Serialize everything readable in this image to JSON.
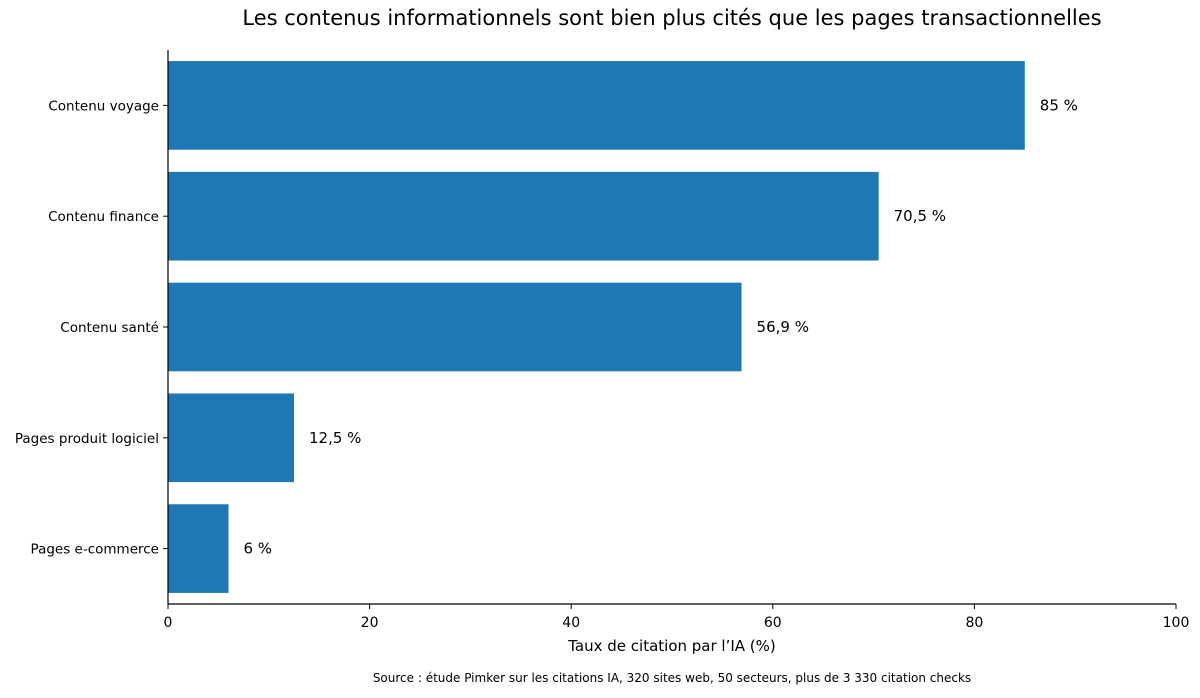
{
  "chart_data": {
    "type": "bar",
    "orientation": "horizontal",
    "title": "Les contenus informationnels sont bien plus cités que les pages transactionnelles",
    "xlabel": "Taux de citation par l’IA (%)",
    "ylabel": "",
    "categories": [
      "Contenu voyage",
      "Contenu finance",
      "Contenu santé",
      "Pages produit logiciel",
      "Pages e-commerce"
    ],
    "values": [
      85,
      70.5,
      56.9,
      12.5,
      6
    ],
    "data_labels": [
      "85 %",
      "70,5 %",
      "56,9 %",
      "12,5 %",
      "6 %"
    ],
    "xlim": [
      0,
      100
    ],
    "xticks": [
      0,
      20,
      40,
      60,
      80,
      100
    ],
    "xtick_labels": [
      "0",
      "20",
      "40",
      "60",
      "80",
      "100"
    ],
    "bar_color": "#1f77b4",
    "grid": false,
    "source": "Source : étude Pimker sur les citations IA, 320 sites web, 50 secteurs, plus de 3 330 citation checks"
  }
}
